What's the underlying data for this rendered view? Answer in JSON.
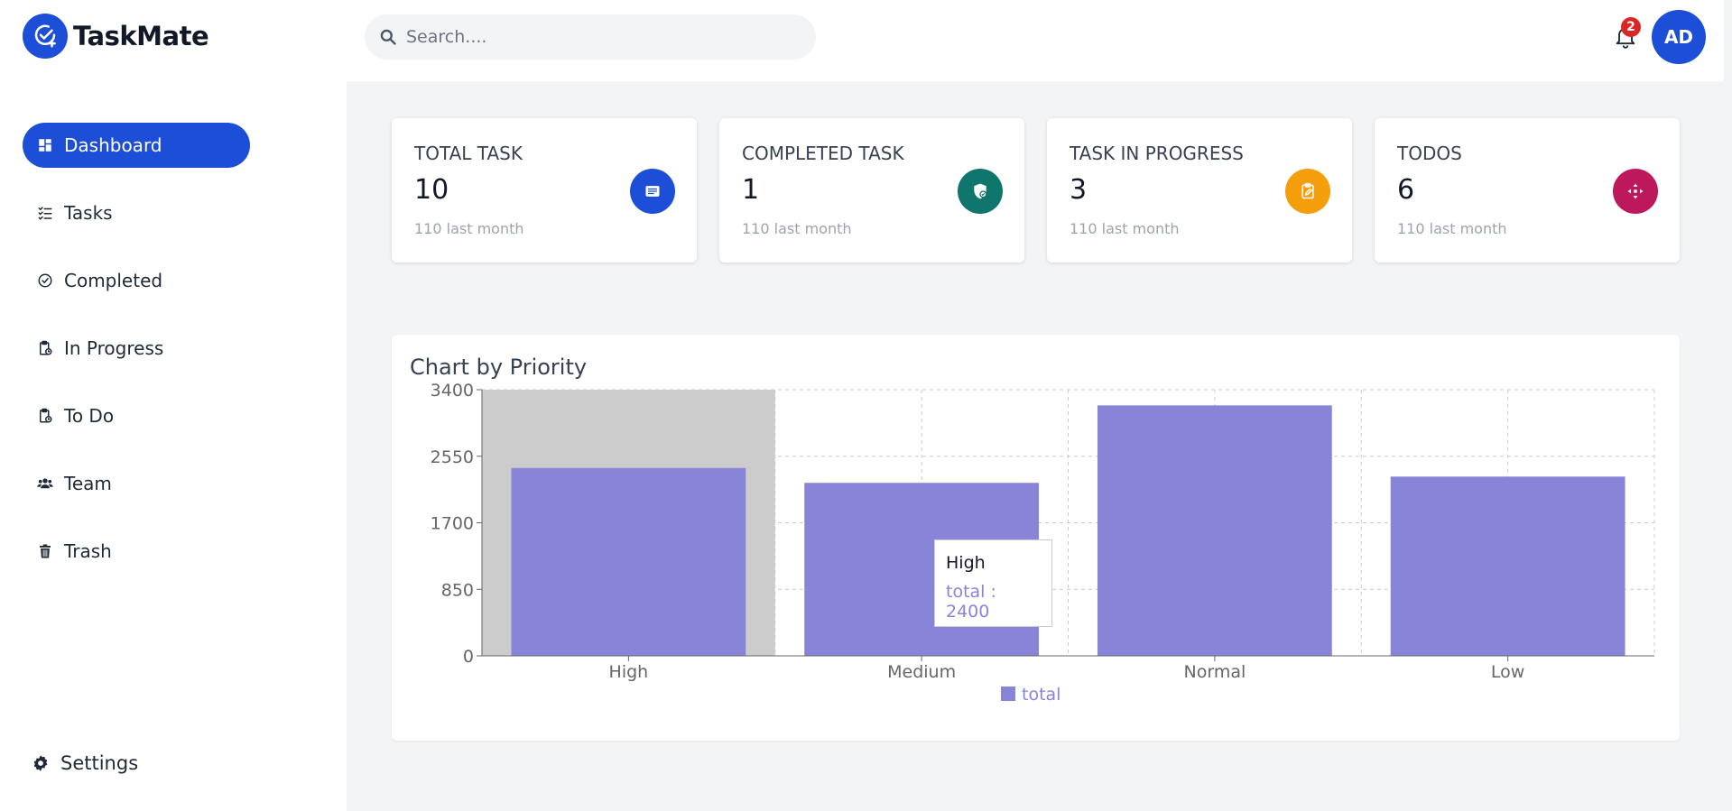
{
  "app": {
    "name": "TaskMate"
  },
  "sidebar": {
    "items": [
      {
        "label": "Dashboard"
      },
      {
        "label": "Tasks"
      },
      {
        "label": "Completed"
      },
      {
        "label": "In Progress"
      },
      {
        "label": "To Do"
      },
      {
        "label": "Team"
      },
      {
        "label": "Trash"
      }
    ],
    "settings_label": "Settings"
  },
  "header": {
    "search_placeholder": "Search....",
    "notification_count": "2",
    "avatar_initials": "AD"
  },
  "stats": [
    {
      "label": "TOTAL TASK",
      "value": "10",
      "sub": "110 last month",
      "color": "#1d4ed8",
      "icon": "note-icon"
    },
    {
      "label": "COMPLETED TASK",
      "value": "1",
      "sub": "110 last month",
      "color": "#0f766e",
      "icon": "shield-check-icon"
    },
    {
      "label": "TASK IN PROGRESS",
      "value": "3",
      "sub": "110 last month",
      "color": "#f59e0b",
      "icon": "clipboard-edit-icon"
    },
    {
      "label": "TODOS",
      "value": "6",
      "sub": "110 last month",
      "color": "#be185d",
      "icon": "arrows-icon"
    }
  ],
  "chart_card": {
    "title": "Chart by Priority"
  },
  "tooltip": {
    "label": "High",
    "value_text": "total : 2400"
  },
  "chart_data": {
    "type": "bar",
    "categories": [
      "High",
      "Medium",
      "Normal",
      "Low"
    ],
    "series": [
      {
        "name": "total",
        "values": [
          2400,
          2210,
          3200,
          2290
        ],
        "color": "#8884d8"
      }
    ],
    "ylim": [
      0,
      3400
    ],
    "yticks": [
      0,
      850,
      1700,
      2550,
      3400
    ],
    "grid": true,
    "legend": "bottom",
    "highlighted_category": "High"
  }
}
